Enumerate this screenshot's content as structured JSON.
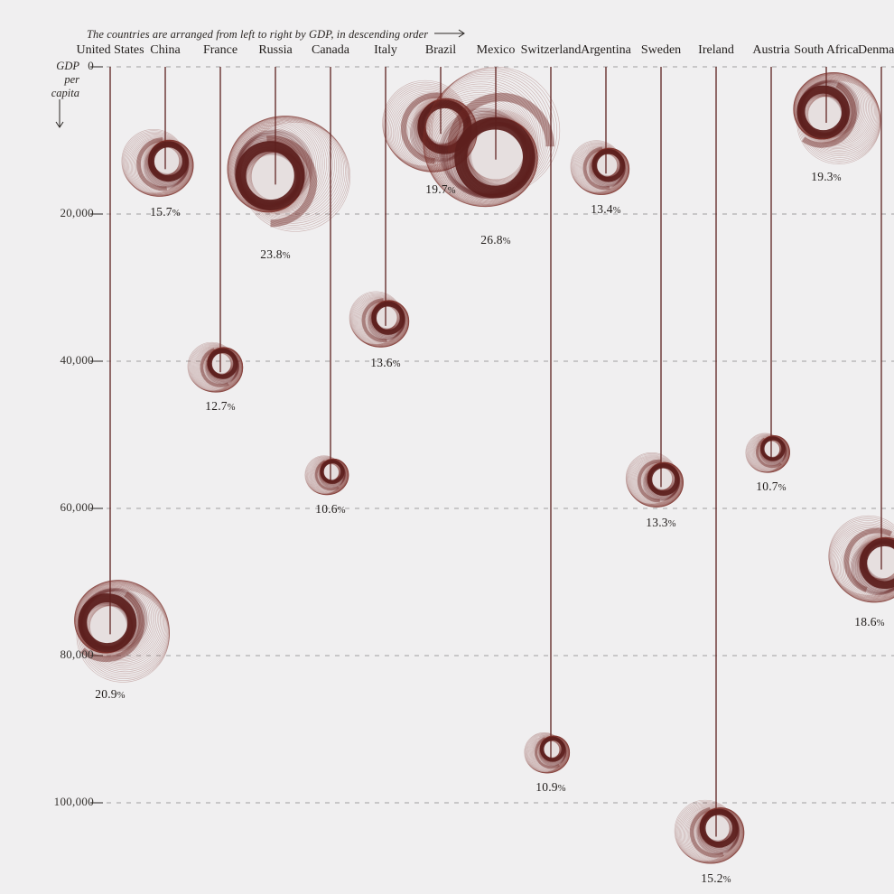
{
  "header": {
    "note": "The countries are arranged from left to right by GDP, in descending order",
    "arrow_icon": "long-right-arrow"
  },
  "axis": {
    "title_lines": [
      "GDP",
      "per",
      "capita"
    ],
    "direction_icon": "down-arrow",
    "ticks": [
      {
        "label": "0",
        "value": 0
      },
      {
        "label": "20,000",
        "value": 20000
      },
      {
        "label": "40,000",
        "value": 40000
      },
      {
        "label": "60,000",
        "value": 60000
      },
      {
        "label": "80,000",
        "value": 80000
      },
      {
        "label": "100,000",
        "value": 100000
      }
    ]
  },
  "colors": {
    "background": "#f0eff0",
    "spiral_dark": "#5d1f1d",
    "spiral_mid": "#6f2824",
    "spiral_thin": "rgba(125,48,44,0.33)",
    "spiral_wash": "rgba(150,84,80,0.10)",
    "pendulum_line": "#5c2120",
    "gridline": "#a09fa0",
    "tick_solid": "#4a4745",
    "text": "#26221f"
  },
  "chart_data": {
    "type": "scatter",
    "mark": "pendulum-spiral",
    "title": "",
    "arrangement_note": "The countries are arranged from left to right by GDP, in descending order",
    "x_encoding": "rank by total GDP, descending, left to right",
    "y_axis": {
      "label": "GDP per capita",
      "direction": "down",
      "range": [
        0,
        110000
      ],
      "ticks": [
        0,
        20000,
        40000,
        60000,
        80000,
        100000
      ],
      "grid": "dashed"
    },
    "size_encoding": "spiral size proportional to percentage value",
    "countries": [
      {
        "name": "United States",
        "pct": 20.9,
        "pct_label": "20.9%",
        "gdp_per_capita": 76000
      },
      {
        "name": "China",
        "pct": 15.7,
        "pct_label": "15.7%",
        "gdp_per_capita": 12800
      },
      {
        "name": "France",
        "pct": 12.7,
        "pct_label": "12.7%",
        "gdp_per_capita": 40400
      },
      {
        "name": "Russia",
        "pct": 23.8,
        "pct_label": "23.8%",
        "gdp_per_capita": 14900
      },
      {
        "name": "Canada",
        "pct": 10.6,
        "pct_label": "10.6%",
        "gdp_per_capita": 55100
      },
      {
        "name": "Italy",
        "pct": 13.6,
        "pct_label": "13.6%",
        "gdp_per_capita": 34100
      },
      {
        "name": "Brazil",
        "pct": 19.7,
        "pct_label": "19.7%",
        "gdp_per_capita": 8000
      },
      {
        "name": "Mexico",
        "pct": 26.8,
        "pct_label": "26.8%",
        "gdp_per_capita": 11500
      },
      {
        "name": "Switzerland",
        "pct": 10.9,
        "pct_label": "10.9%",
        "gdp_per_capita": 92800
      },
      {
        "name": "Argentina",
        "pct": 13.4,
        "pct_label": "13.4%",
        "gdp_per_capita": 13400
      },
      {
        "name": "Sweden",
        "pct": 13.3,
        "pct_label": "13.3%",
        "gdp_per_capita": 56000
      },
      {
        "name": "Ireland",
        "pct": 15.2,
        "pct_label": "15.2%",
        "gdp_per_capita": 103500
      },
      {
        "name": "Austria",
        "pct": 10.7,
        "pct_label": "10.7%",
        "gdp_per_capita": 52000
      },
      {
        "name": "South Africa",
        "pct": 19.3,
        "pct_label": "19.3%",
        "gdp_per_capita": 6500
      },
      {
        "name": "Denmark",
        "pct": 18.6,
        "pct_label": "18.6%",
        "gdp_per_capita": 67200
      }
    ]
  }
}
